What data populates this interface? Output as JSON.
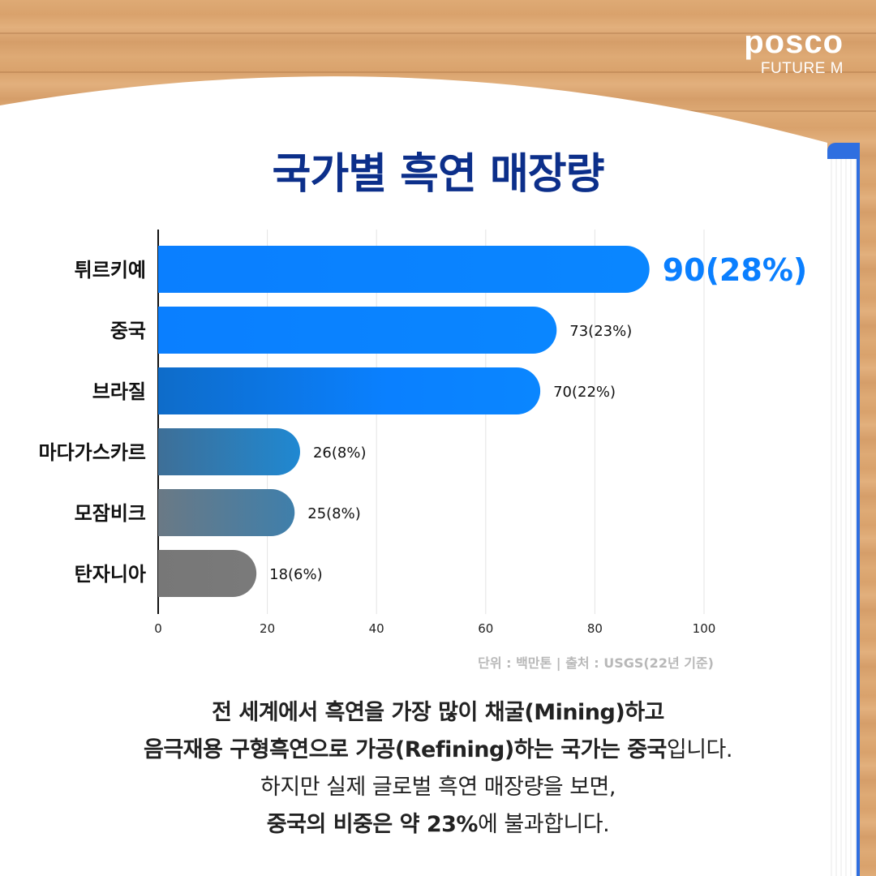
{
  "logo": {
    "main": "posco",
    "sub": "FUTURE M"
  },
  "title": "국가별 흑연 매장량",
  "chart_data": {
    "type": "bar",
    "orientation": "horizontal",
    "categories": [
      "튀르키예",
      "중국",
      "브라질",
      "마다가스카르",
      "모잠비크",
      "탄자니아"
    ],
    "values": [
      90,
      73,
      70,
      26,
      25,
      18
    ],
    "data_labels": [
      "90(28%)",
      "73(23%)",
      "70(22%)",
      "26(8%)",
      "25(8%)",
      "18(6%)"
    ],
    "xlim": [
      0,
      100
    ],
    "xticks": [
      0,
      20,
      40,
      60,
      80,
      100
    ],
    "grid": true,
    "bar_colors": [
      "#0a7fff",
      "#0a7fff",
      "#0a7fff",
      "#2f7fbf",
      "#4b7b9f",
      "#787878"
    ],
    "highlight_color": "#0a7fff"
  },
  "note": "단위 : 백만톤 | 출처 : USGS(22년 기준)",
  "description": {
    "line1": "전 세계에서 흑연을 가장 많이 채굴(Mining)하고",
    "line2_bold": "음극재용 구형흑연으로 가공(Refining)하는 국가는 중국",
    "line2_rest": "입니다.",
    "line3": "하지만 실제 글로벌 흑연 매장량을 보면,",
    "line4_bold": "중국의 비중은 약 23%",
    "line4_rest": "에 불과합니다."
  }
}
